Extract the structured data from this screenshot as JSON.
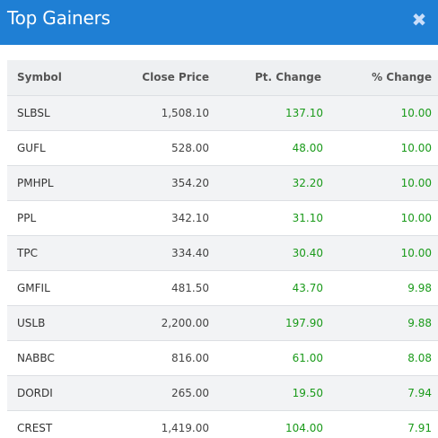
{
  "header": {
    "title": "Top Gainers",
    "close_icon": "close-icon"
  },
  "table": {
    "columns": [
      "Symbol",
      "Close Price",
      "Pt. Change",
      "% Change"
    ],
    "rows": [
      {
        "symbol": "SLBSL",
        "close": "1,508.10",
        "pt_change": "137.10",
        "pct_change": "10.00"
      },
      {
        "symbol": "GUFL",
        "close": "528.00",
        "pt_change": "48.00",
        "pct_change": "10.00"
      },
      {
        "symbol": "PMHPL",
        "close": "354.20",
        "pt_change": "32.20",
        "pct_change": "10.00"
      },
      {
        "symbol": "PPL",
        "close": "342.10",
        "pt_change": "31.10",
        "pct_change": "10.00"
      },
      {
        "symbol": "TPC",
        "close": "334.40",
        "pt_change": "30.40",
        "pct_change": "10.00"
      },
      {
        "symbol": "GMFIL",
        "close": "481.50",
        "pt_change": "43.70",
        "pct_change": "9.98"
      },
      {
        "symbol": "USLB",
        "close": "2,200.00",
        "pt_change": "197.90",
        "pct_change": "9.88"
      },
      {
        "symbol": "NABBC",
        "close": "816.00",
        "pt_change": "61.00",
        "pct_change": "8.08"
      },
      {
        "symbol": "DORDI",
        "close": "265.00",
        "pt_change": "19.50",
        "pct_change": "7.94"
      },
      {
        "symbol": "CREST",
        "close": "1,419.00",
        "pt_change": "104.00",
        "pct_change": "7.91"
      }
    ]
  },
  "colors": {
    "header_bg": "#1f7fd4",
    "positive": "#1a9a1a"
  }
}
